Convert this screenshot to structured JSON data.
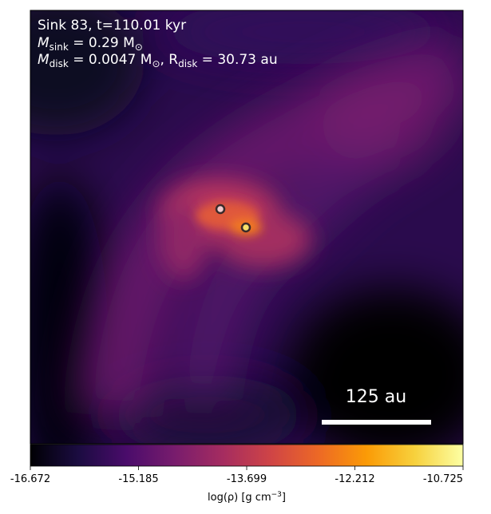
{
  "info": {
    "title": "Sink 83, t=110.01 kyr",
    "msink_symbol": "M",
    "msink_sub": "sink",
    "msink_value": " = 0.29 M",
    "sun_symbol": "⊙",
    "mdisk_symbol": "M",
    "mdisk_sub": "disk",
    "mdisk_value": " = 0.0047 M",
    "rdisk_sep": ", R",
    "rdisk_sub": "disk",
    "rdisk_value": " = 30.73 au"
  },
  "scalebar": {
    "label": "125 au"
  },
  "colorbar": {
    "ticks": [
      "-16.672",
      "-15.185",
      "-13.699",
      "-12.212",
      "-10.725"
    ],
    "label_prefix": "log(ρ) [g cm",
    "label_exp": "−3",
    "label_suffix": "]",
    "colormap": [
      "#000004",
      "#1b0c41",
      "#4a0c6b",
      "#781c6d",
      "#a52c60",
      "#cf4446",
      "#ed6925",
      "#fb9b06",
      "#f7d13d",
      "#fcffa4"
    ]
  },
  "sinks": [
    {
      "fill": "#f2c9cc"
    },
    {
      "fill": "#f6e06a"
    }
  ]
}
